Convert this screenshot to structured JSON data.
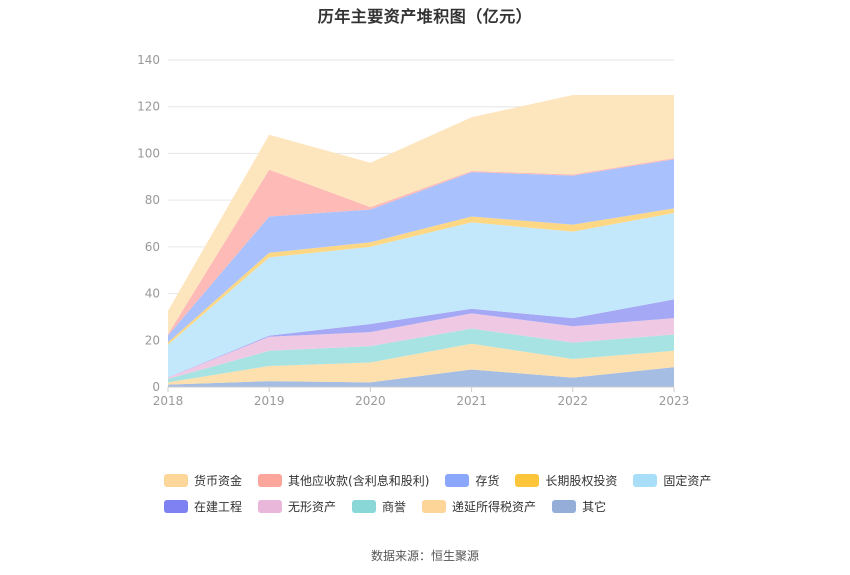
{
  "chart_data": {
    "type": "area",
    "title": "历年主要资产堆积图（亿元）",
    "x": [
      "2018",
      "2019",
      "2020",
      "2021",
      "2022",
      "2023"
    ],
    "ylim": [
      0,
      140
    ],
    "yticks": [
      0,
      20,
      40,
      60,
      80,
      100,
      120,
      140
    ],
    "grid": true,
    "stacked": true,
    "legend_position": "bottom",
    "series": [
      {
        "name": "其它",
        "color": "#a6bde3",
        "values": [
          1,
          2.5,
          2,
          7.5,
          4,
          8.5
        ]
      },
      {
        "name": "递延所得税资产",
        "color": "#fde0ad",
        "values": [
          1,
          6.5,
          8.5,
          11,
          8,
          7
        ]
      },
      {
        "name": "商誉",
        "color": "#a8e3e4",
        "values": [
          1.5,
          6.5,
          7,
          6.5,
          7,
          7
        ]
      },
      {
        "name": "无形资产",
        "color": "#efc9e4",
        "values": [
          0.5,
          6,
          6,
          6.5,
          7,
          7
        ]
      },
      {
        "name": "在建工程",
        "color": "#a5a8f5",
        "values": [
          0.1,
          0.5,
          3.5,
          2,
          3.5,
          8
        ]
      },
      {
        "name": "固定资产",
        "color": "#c4e8fb",
        "values": [
          14,
          33.5,
          33,
          37,
          37,
          37
        ]
      },
      {
        "name": "长期股权投资",
        "color": "#fdd784",
        "values": [
          1,
          2,
          2,
          2.5,
          3,
          2
        ]
      },
      {
        "name": "存货",
        "color": "#a9c1fd",
        "values": [
          3,
          15.5,
          14,
          19,
          21,
          21
        ]
      },
      {
        "name": "其他应收款(含利息和股利)",
        "color": "#fdbab6",
        "values": [
          0.5,
          20,
          1,
          0.5,
          0.5,
          0.5
        ]
      },
      {
        "name": "货币资金",
        "color": "#fde5bd",
        "values": [
          10,
          15,
          19,
          23,
          34,
          27
        ]
      }
    ]
  },
  "legend": {
    "row1": [
      {
        "label": "货币资金",
        "color": "#fdd799"
      },
      {
        "label": "其他应收款(含利息和股利)",
        "color": "#fda69c"
      },
      {
        "label": "存货",
        "color": "#8aa7fb"
      },
      {
        "label": "长期股权投资",
        "color": "#fcc53a"
      },
      {
        "label": "固定资产",
        "color": "#a9def9"
      }
    ],
    "row2": [
      {
        "label": "在建工程",
        "color": "#7f80f2"
      },
      {
        "label": "无形资产",
        "color": "#e9b7da"
      },
      {
        "label": "商誉",
        "color": "#8ad7d8"
      },
      {
        "label": "递延所得税资产",
        "color": "#fdd599"
      },
      {
        "label": "其它",
        "color": "#94add9"
      }
    ]
  },
  "source": "数据来源：恒生聚源"
}
